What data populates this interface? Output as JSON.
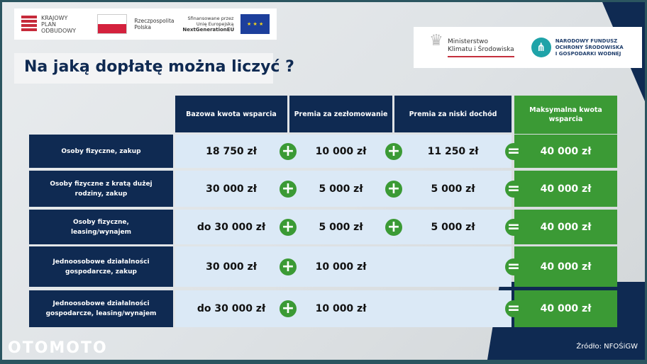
{
  "logos": {
    "kpo": [
      "KRAJOWY",
      "PLAN",
      "ODBUDOWY"
    ],
    "rp": [
      "Rzeczpospolita",
      "Polska"
    ],
    "eu": [
      "Sfinansowane przez",
      "Unię Europejską",
      "NextGenerationEU"
    ],
    "mkis": [
      "Ministerstwo",
      "Klimatu i Środowiska"
    ],
    "nfosigw": [
      "NARODOWY FUNDUSZ",
      "OCHRONY ŚRODOWISKA",
      "I GOSPODARKI WODNEJ"
    ]
  },
  "title": "Na jaką dopłatę można liczyć ?",
  "headers": [
    "Bazowa kwota wsparcia",
    "Premia za zezłomowanie",
    "Premia za niski dochód",
    "Maksymalna kwota wsparcia"
  ],
  "rows": [
    {
      "label": "Osoby fizyczne, zakup",
      "base": "18 750 zł",
      "scrap": "10 000 zł",
      "low": "11 250 zł",
      "max": "40 000 zł"
    },
    {
      "label": "Osoby fizyczne z kratą dużej rodziny, zakup",
      "base": "30 000 zł",
      "scrap": "5 000 zł",
      "low": "5 000 zł",
      "max": "40 000 zł"
    },
    {
      "label": "Osoby fizyczne, leasing/wynajem",
      "base": "do 30 000 zł",
      "scrap": "5 000 zł",
      "low": "5 000 zł",
      "max": "40 000 zł"
    },
    {
      "label": "Jednoosobowe działalności gospodarcze, zakup",
      "base": "30 000 zł",
      "scrap": "10 000 zł",
      "low": "",
      "max": "40 000 zł"
    },
    {
      "label": "Jednoosobowe działalności gospodarcze, leasing/wynajem",
      "base": "do 30 000 zł",
      "scrap": "10 000 zł",
      "low": "",
      "max": "40 000 zł"
    }
  ],
  "operators": {
    "plus": "+",
    "equals": "="
  },
  "brand": "OTOMOTO",
  "source": "Źródło: NFOŚiGW",
  "colors": {
    "navy": "#0f2a52",
    "green": "#3b9a35",
    "cell": "#dbe9f6"
  }
}
